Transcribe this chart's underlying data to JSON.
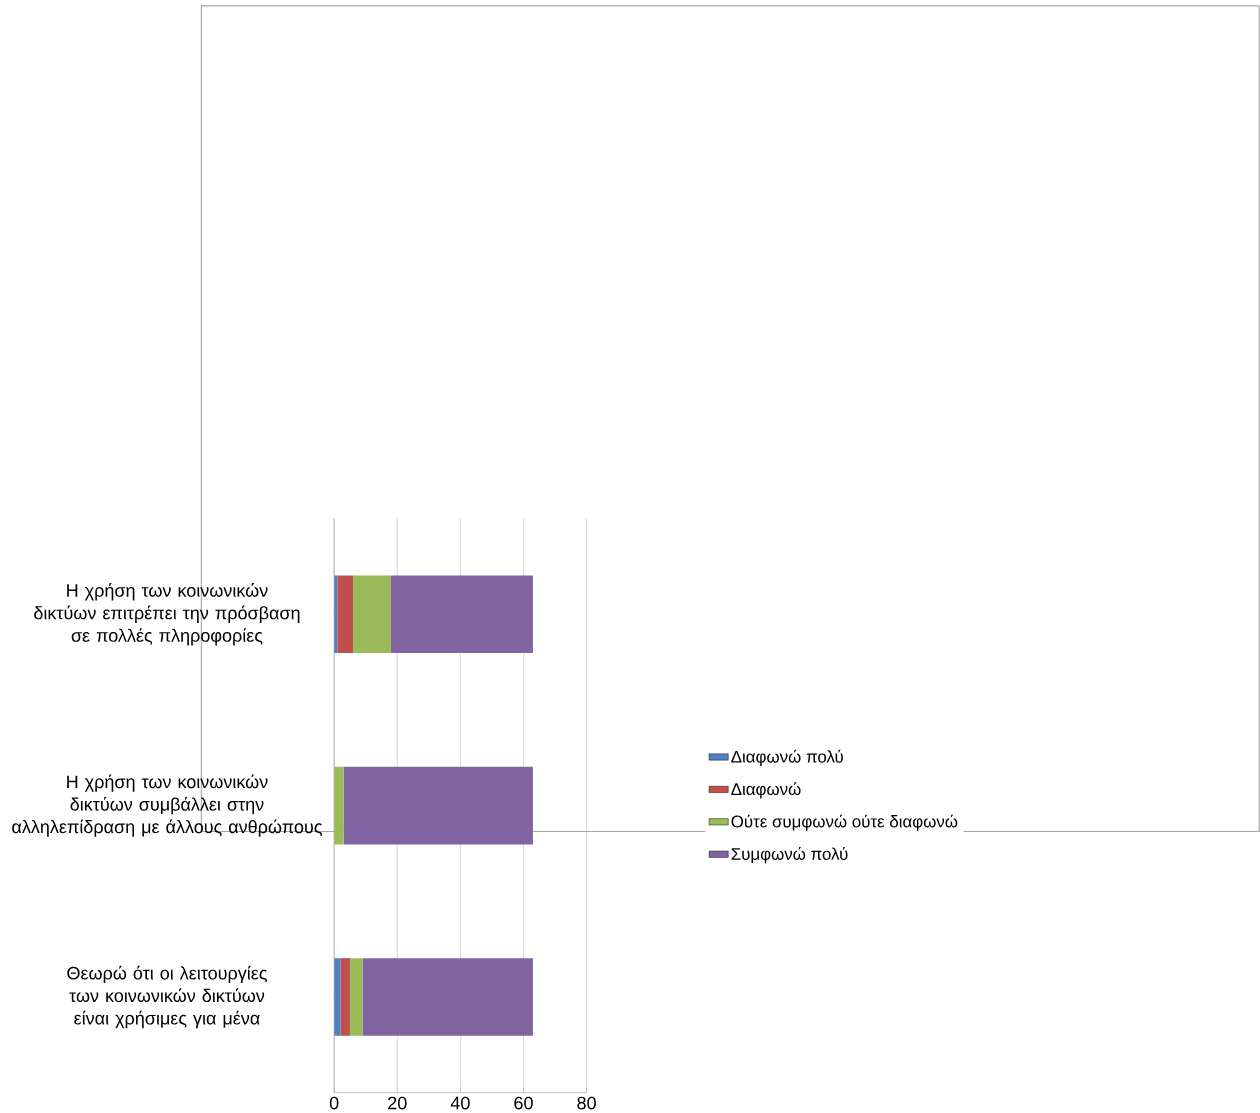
{
  "chart_data": {
    "type": "bar",
    "orientation": "horizontal",
    "stacked": true,
    "categories": [
      "Η χρήση των κοινωνικών δικτύων επιτρέπει την πρόσβαση σε πολλές πληροφορίες",
      "Η χρήση των κοινωνικών δικτύων συμβάλλει στην αλληλεπίδραση με άλλους ανθρώπους",
      "Θεωρώ ότι οι λειτουργίες των κοινωνικών δικτύων είναι χρήσιμες για μένα"
    ],
    "series": [
      {
        "name": "Διαφωνώ πολύ",
        "color": "#4f81bd",
        "values": [
          1,
          0,
          2
        ]
      },
      {
        "name": "Διαφωνώ",
        "color": "#c0504d",
        "values": [
          5,
          0,
          3
        ]
      },
      {
        "name": "Ούτε συμφωνώ ούτε διαφωνώ",
        "color": "#9bbb59",
        "values": [
          12,
          3,
          4
        ]
      },
      {
        "name": "Συμφωνώ πολύ",
        "color": "#8064a2",
        "values": [
          45,
          60,
          54
        ]
      }
    ],
    "xlim": [
      0,
      80
    ],
    "xticks": [
      0,
      20,
      40,
      60,
      80
    ],
    "grid": "x",
    "legend": "right"
  }
}
